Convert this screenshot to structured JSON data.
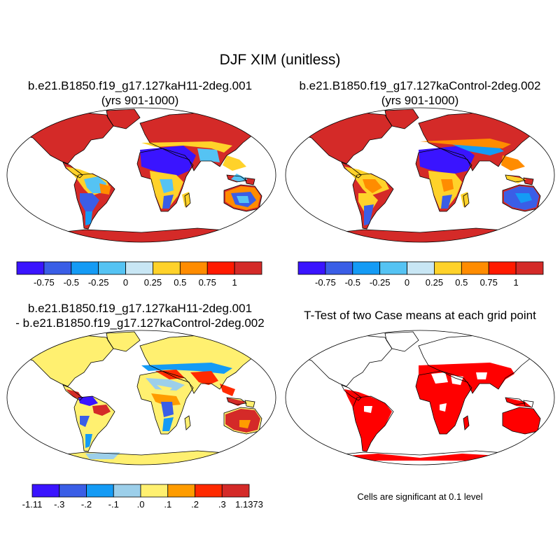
{
  "title": "DJF XIM (unitless)",
  "panels": [
    {
      "title_line1": "b.e21.B1850.f19_g17.127kaH11-2deg.001",
      "title_line2": "(yrs 901-1000)"
    },
    {
      "title_line1": "b.e21.B1850.f19_g17.127kaControl-2deg.002",
      "title_line2": "(yrs 901-1000)"
    },
    {
      "title_line1": "b.e21.B1850.f19_g17.127kaH11-2deg.001",
      "title_line2": "- b.e21.B1850.f19_g17.127kaControl-2deg.002"
    },
    {
      "title_line1": "T-Test of two Case means at each grid point"
    }
  ],
  "colorbar_top": {
    "colors": [
      "#3a14ff",
      "#3a5ee6",
      "#149bf5",
      "#55c3f3",
      "#c8e6f4",
      "#ffd22a",
      "#ff8c00",
      "#ff1a00",
      "#d42a28"
    ],
    "labels": [
      "-0.75",
      "-0.5",
      "-0.25",
      "0",
      "0.25",
      "0.5",
      "0.75",
      "1"
    ]
  },
  "colorbar_diff": {
    "colors": [
      "#3a14ff",
      "#3a5ee6",
      "#149bf5",
      "#9ccfea",
      "#fff070",
      "#ff9c00",
      "#ff2a00",
      "#d42a28"
    ],
    "labels": [
      "-1.11",
      "-.3",
      "-.2",
      "-.1",
      ".0",
      ".1",
      ".2",
      ".3",
      "1.1373"
    ]
  },
  "significance_note": "Cells are significant at 0.1 level",
  "colors": {
    "land_red": "#d42a28",
    "land_blue": "#3a14ff",
    "diff_yellow": "#fff070",
    "sig_red": "#ff0000"
  }
}
